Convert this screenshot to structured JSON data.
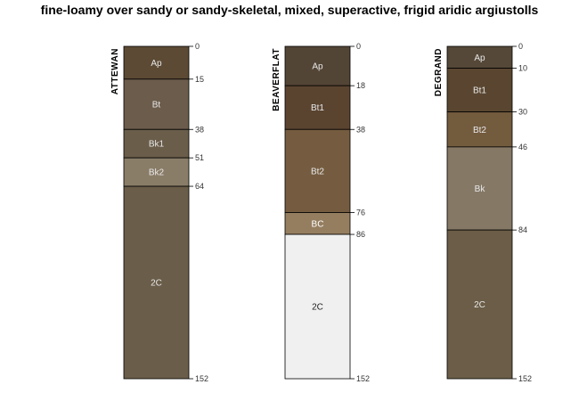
{
  "title": "fine-loamy over sandy or sandy-skeletal, mixed, superactive, frigid aridic argiustolls",
  "chart_data": {
    "type": "soil-profile",
    "max_depth": 152,
    "profiles": [
      {
        "name": "ATTEWAN",
        "horizons": [
          {
            "name": "Ap",
            "top": 0,
            "bottom": 15,
            "color": "#5c4a34",
            "text_color": "#e8e8e8"
          },
          {
            "name": "Bt",
            "top": 15,
            "bottom": 38,
            "color": "#6c5c4c",
            "text_color": "#e8e8e8"
          },
          {
            "name": "Bk1",
            "top": 38,
            "bottom": 51,
            "color": "#6a5d4a",
            "text_color": "#e8e8e8"
          },
          {
            "name": "Bk2",
            "top": 51,
            "bottom": 64,
            "color": "#8a7d68",
            "text_color": "#e8e8e8"
          },
          {
            "name": "2C",
            "top": 64,
            "bottom": 152,
            "color": "#6a5d49",
            "text_color": "#e8e8e8"
          }
        ],
        "depth_ticks": [
          "0",
          "15",
          "38",
          "51",
          "64",
          "152"
        ]
      },
      {
        "name": "BEAVERFLAT",
        "horizons": [
          {
            "name": "Ap",
            "top": 0,
            "bottom": 18,
            "color": "#534536",
            "text_color": "#e8e8e8"
          },
          {
            "name": "Bt1",
            "top": 18,
            "bottom": 38,
            "color": "#5a4430",
            "text_color": "#e8e8e8"
          },
          {
            "name": "Bt2",
            "top": 38,
            "bottom": 76,
            "color": "#755c40",
            "text_color": "#e8e8e8"
          },
          {
            "name": "BC",
            "top": 76,
            "bottom": 86,
            "color": "#957e60",
            "text_color": "#ffffff"
          },
          {
            "name": "2C",
            "top": 86,
            "bottom": 152,
            "color": "#f0f0f0",
            "text_color": "#222222"
          }
        ],
        "depth_ticks": [
          "0",
          "18",
          "38",
          "76",
          "86",
          "152"
        ]
      },
      {
        "name": "DEGRAND",
        "horizons": [
          {
            "name": "Ap",
            "top": 0,
            "bottom": 10,
            "color": "#554838",
            "text_color": "#e8e8e8"
          },
          {
            "name": "Bt1",
            "top": 10,
            "bottom": 30,
            "color": "#5a4630",
            "text_color": "#e8e8e8"
          },
          {
            "name": "Bt2",
            "top": 30,
            "bottom": 46,
            "color": "#735b3e",
            "text_color": "#e8e8e8"
          },
          {
            "name": "Bk",
            "top": 46,
            "bottom": 84,
            "color": "#857966",
            "text_color": "#e8e8e8"
          },
          {
            "name": "2C",
            "top": 84,
            "bottom": 152,
            "color": "#6b5d47",
            "text_color": "#e8e8e8"
          }
        ],
        "depth_ticks": [
          "0",
          "10",
          "30",
          "46",
          "84",
          "152"
        ]
      }
    ]
  }
}
